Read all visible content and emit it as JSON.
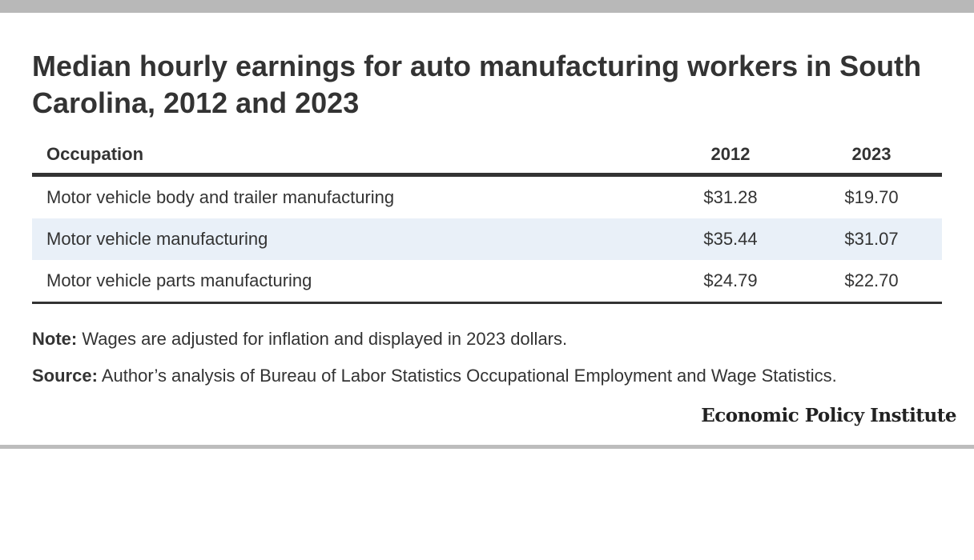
{
  "title": "Median hourly earnings for auto manufacturing workers in South Carolina, 2012 and 2023",
  "chart_data": {
    "type": "table",
    "title": "Median hourly earnings for auto manufacturing workers in South Carolina, 2012 and 2023",
    "columns": [
      "Occupation",
      "2012",
      "2023"
    ],
    "rows": [
      {
        "occupation": "Motor vehicle body and trailer manufacturing",
        "y2012": "$31.28",
        "y2023": "$19.70"
      },
      {
        "occupation": "Motor vehicle manufacturing",
        "y2012": "$35.44",
        "y2023": "$31.07"
      },
      {
        "occupation": "Motor vehicle parts manufacturing",
        "y2012": "$24.79",
        "y2023": "$22.70"
      }
    ]
  },
  "note": {
    "label": "Note:",
    "text": " Wages are adjusted for inflation and displayed in 2023 dollars."
  },
  "source": {
    "label": "Source:",
    "text": " Author’s analysis of Bureau of Labor Statistics Occupational Employment and Wage Statistics."
  },
  "brand": "Economic Policy Institute",
  "colors": {
    "stripe": "#e9f0f8",
    "text": "#333333",
    "frame_bar": "#b8b8b8"
  }
}
